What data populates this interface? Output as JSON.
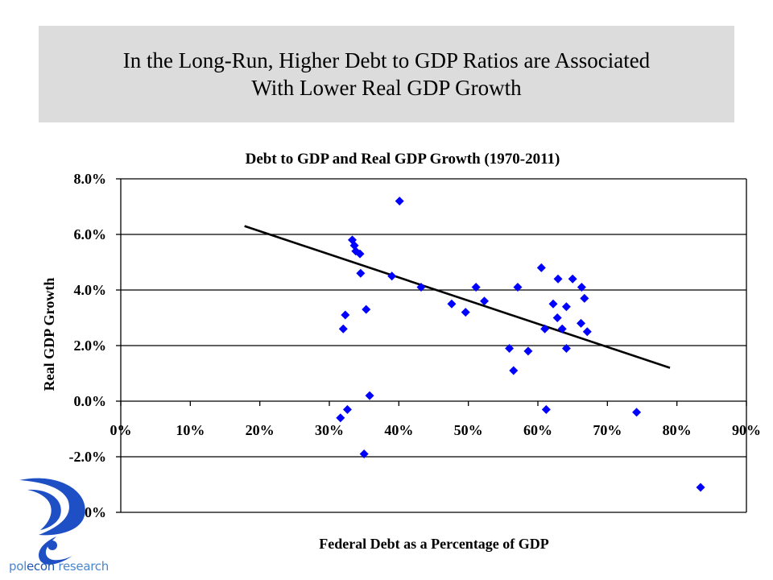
{
  "slide": {
    "headline_line1": "In the Long-Run, Higher Debt to GDP Ratios are Associated",
    "headline_line2": "With Lower Real GDP Growth",
    "headline_bg": "#dcdcdc"
  },
  "logo": {
    "icon": "polecon-swirl-question-mark-icon",
    "text_part1": "pol",
    "text_part2": "econ",
    "text_part3": " research",
    "color": "#1f4fc4"
  },
  "chart_data": {
    "type": "scatter",
    "title": "Debt to GDP and Real GDP Growth (1970-2011)",
    "xlabel": "Federal Debt as a Percentage of GDP",
    "ylabel": "Real GDP Growth",
    "xlim": [
      0,
      90
    ],
    "ylim": [
      -4,
      8
    ],
    "x_ticks": [
      0,
      10,
      20,
      30,
      40,
      50,
      60,
      70,
      80,
      90
    ],
    "y_ticks": [
      8,
      6,
      4,
      2,
      0,
      -2,
      -4
    ],
    "x_tick_labels": [
      "0%",
      "10%",
      "20%",
      "30%",
      "40%",
      "50%",
      "60%",
      "70%",
      "80%",
      "90%"
    ],
    "y_tick_labels": [
      "8.0%",
      "6.0%",
      "4.0%",
      "2.0%",
      "0.0%",
      "-2.0%",
      "-4.0%"
    ],
    "grid": "horizontal",
    "marker": "diamond",
    "marker_color": "#0000ff",
    "points": [
      [
        40.1,
        7.2
      ],
      [
        33.3,
        5.8
      ],
      [
        33.6,
        5.6
      ],
      [
        33.8,
        5.4
      ],
      [
        34.4,
        5.3
      ],
      [
        34.5,
        4.6
      ],
      [
        39.0,
        4.5
      ],
      [
        43.2,
        4.1
      ],
      [
        47.6,
        3.5
      ],
      [
        49.6,
        3.2
      ],
      [
        51.1,
        4.1
      ],
      [
        52.3,
        3.6
      ],
      [
        57.1,
        4.1
      ],
      [
        55.9,
        1.9
      ],
      [
        58.6,
        1.8
      ],
      [
        56.5,
        1.1
      ],
      [
        60.5,
        4.8
      ],
      [
        62.9,
        4.4
      ],
      [
        65.0,
        4.4
      ],
      [
        66.3,
        4.1
      ],
      [
        66.7,
        3.7
      ],
      [
        62.2,
        3.5
      ],
      [
        64.1,
        3.4
      ],
      [
        62.8,
        3.0
      ],
      [
        63.5,
        2.6
      ],
      [
        66.2,
        2.8
      ],
      [
        67.1,
        2.5
      ],
      [
        61.0,
        2.6
      ],
      [
        64.1,
        1.9
      ],
      [
        61.2,
        -0.3
      ],
      [
        32.3,
        3.1
      ],
      [
        35.3,
        3.3
      ],
      [
        32.0,
        2.6
      ],
      [
        35.8,
        0.2
      ],
      [
        32.6,
        -0.3
      ],
      [
        31.6,
        -0.6
      ],
      [
        35.0,
        -1.9
      ],
      [
        74.2,
        -0.4
      ],
      [
        83.4,
        -3.1
      ]
    ],
    "trendline": {
      "type": "linear",
      "start": [
        17.8,
        6.3
      ],
      "end": [
        79.0,
        1.2
      ],
      "color": "#000000"
    },
    "legend": "none"
  }
}
